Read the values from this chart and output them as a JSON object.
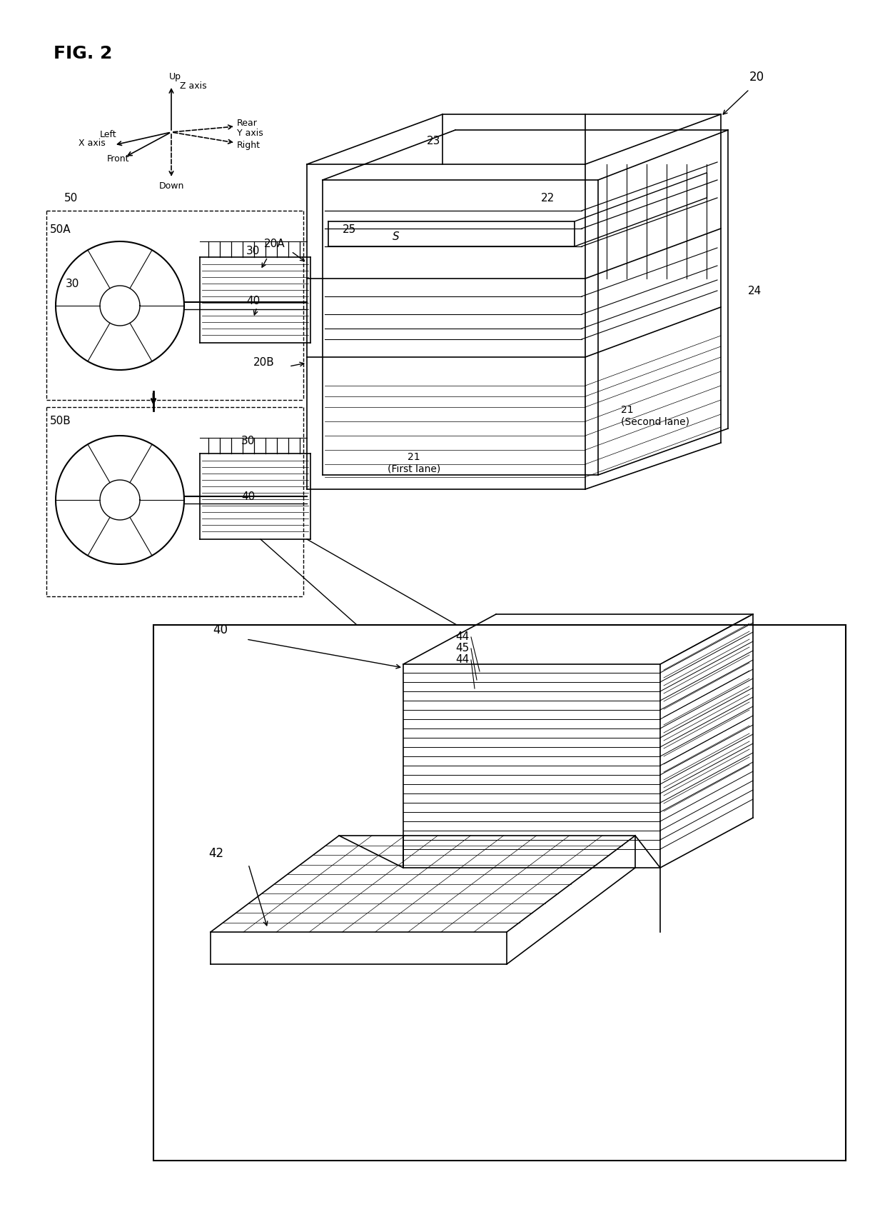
{
  "fig_label": "FIG. 2",
  "bg_color": "#ffffff",
  "line_color": "#000000",
  "labels": {
    "fig": "FIG. 2",
    "20": "20",
    "20A": "20A",
    "20B": "20B",
    "21_first": "21\n(First lane)",
    "21_second": "21\n(Second lane)",
    "22": "22",
    "23": "23",
    "24": "24",
    "25": "25",
    "30_top": "30",
    "30_mid": "30",
    "30_bot": "30",
    "40_top": "40",
    "40_bot": "40",
    "40_inset": "40",
    "42": "42",
    "44_top": "44",
    "44_mid": "45",
    "44_bot": "44",
    "50": "50",
    "50A": "50A",
    "50B": "50B",
    "S": "S",
    "axis_up": "Up",
    "axis_down": "Down",
    "axis_left": "Left",
    "axis_right": "Right",
    "axis_front": "Front",
    "axis_rear": "Rear",
    "axis_x": "X axis",
    "axis_y": "Y axis",
    "axis_z": "Z axis"
  }
}
